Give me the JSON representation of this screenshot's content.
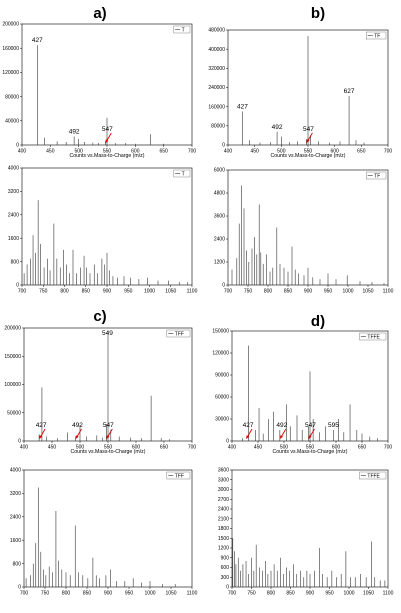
{
  "chart_data": [
    {
      "id": "a-top",
      "type": "bar",
      "panel_letter": "a)",
      "legend": "T",
      "xlabel": "Counts vs.Mass-to-Charge (m/z)",
      "xlim": [
        400,
        700
      ],
      "ylim": [
        0,
        200000
      ],
      "xticks": [
        400,
        450,
        500,
        550,
        600,
        650,
        700
      ],
      "yticks": [
        0,
        40000,
        80000,
        120000,
        160000,
        200000
      ],
      "peaks": [
        [
          427,
          165000
        ],
        [
          440,
          12000
        ],
        [
          462,
          6000
        ],
        [
          478,
          5000
        ],
        [
          492,
          14000
        ],
        [
          500,
          10000
        ],
        [
          510,
          5000
        ],
        [
          525,
          4000
        ],
        [
          535,
          3500
        ],
        [
          547,
          6000
        ],
        [
          550,
          45000
        ],
        [
          565,
          3000
        ],
        [
          583,
          3000
        ],
        [
          600,
          2000
        ],
        [
          627,
          18000
        ],
        [
          650,
          2000
        ]
      ],
      "labels": [
        {
          "text": "427",
          "x": 427,
          "y": 165000
        },
        {
          "text": "492",
          "x": 492,
          "y": 14000
        },
        {
          "text": "547",
          "x": 547,
          "y": 6000
        }
      ],
      "arrows": [
        547
      ]
    },
    {
      "id": "b-top",
      "type": "bar",
      "panel_letter": "b)",
      "legend": "TF",
      "xlabel": "Counts vs.Mass-to-Charge (m/z)",
      "xlim": [
        400,
        700
      ],
      "ylim": [
        0,
        480000
      ],
      "xticks": [
        400,
        450,
        500,
        550,
        600,
        650,
        700
      ],
      "yticks": [
        0,
        80000,
        160000,
        240000,
        320000,
        400000,
        480000
      ],
      "peaks": [
        [
          427,
          140000
        ],
        [
          440,
          20000
        ],
        [
          460,
          10000
        ],
        [
          480,
          12000
        ],
        [
          492,
          55000
        ],
        [
          500,
          35000
        ],
        [
          515,
          12000
        ],
        [
          530,
          15000
        ],
        [
          547,
          25000
        ],
        [
          550,
          455000
        ],
        [
          555,
          40000
        ],
        [
          570,
          15000
        ],
        [
          590,
          10000
        ],
        [
          610,
          15000
        ],
        [
          627,
          205000
        ],
        [
          640,
          20000
        ],
        [
          655,
          10000
        ]
      ],
      "labels": [
        {
          "text": "427",
          "x": 427,
          "y": 140000
        },
        {
          "text": "492",
          "x": 492,
          "y": 55000
        },
        {
          "text": "547",
          "x": 547,
          "y": 25000
        },
        {
          "text": "627",
          "x": 627,
          "y": 205000
        }
      ],
      "arrows": [
        547
      ]
    },
    {
      "id": "a-bottom",
      "type": "bar",
      "legend": "T",
      "xlim": [
        700,
        1100
      ],
      "ylim": [
        0,
        4000
      ],
      "xticks": [
        700,
        750,
        800,
        850,
        900,
        950,
        1000,
        1050,
        1100
      ],
      "yticks": [
        0,
        800,
        1600,
        2400,
        3200,
        4000
      ],
      "peaks": [
        [
          705,
          400
        ],
        [
          712,
          700
        ],
        [
          720,
          900
        ],
        [
          726,
          1700
        ],
        [
          732,
          1100
        ],
        [
          738,
          2900
        ],
        [
          744,
          1400
        ],
        [
          752,
          600
        ],
        [
          760,
          900
        ],
        [
          766,
          500
        ],
        [
          775,
          2100
        ],
        [
          782,
          900
        ],
        [
          790,
          600
        ],
        [
          798,
          1200
        ],
        [
          805,
          700
        ],
        [
          812,
          400
        ],
        [
          820,
          1200
        ],
        [
          828,
          400
        ],
        [
          838,
          600
        ],
        [
          846,
          1000
        ],
        [
          852,
          600
        ],
        [
          860,
          400
        ],
        [
          870,
          700
        ],
        [
          878,
          400
        ],
        [
          888,
          900
        ],
        [
          894,
          700
        ],
        [
          900,
          1100
        ],
        [
          906,
          500
        ],
        [
          914,
          300
        ],
        [
          925,
          250
        ],
        [
          940,
          300
        ],
        [
          955,
          250
        ],
        [
          975,
          200
        ],
        [
          995,
          250
        ],
        [
          1020,
          150
        ],
        [
          1045,
          150
        ],
        [
          1070,
          100
        ],
        [
          1090,
          100
        ]
      ],
      "labels": [],
      "arrows": []
    },
    {
      "id": "b-bottom",
      "type": "bar",
      "legend": "TF",
      "xlim": [
        700,
        1100
      ],
      "ylim": [
        0,
        6000
      ],
      "xticks": [
        700,
        750,
        800,
        850,
        900,
        950,
        1000,
        1050,
        1100
      ],
      "yticks": [
        0,
        1200,
        2400,
        3600,
        4800,
        6000
      ],
      "peaks": [
        [
          710,
          800
        ],
        [
          722,
          1400
        ],
        [
          728,
          3200
        ],
        [
          734,
          5200
        ],
        [
          740,
          4000
        ],
        [
          746,
          1800
        ],
        [
          752,
          1200
        ],
        [
          760,
          1900
        ],
        [
          766,
          2500
        ],
        [
          772,
          1600
        ],
        [
          778,
          4200
        ],
        [
          782,
          1700
        ],
        [
          788,
          1100
        ],
        [
          796,
          1600
        ],
        [
          805,
          700
        ],
        [
          812,
          900
        ],
        [
          822,
          3000
        ],
        [
          830,
          1100
        ],
        [
          840,
          900
        ],
        [
          850,
          700
        ],
        [
          860,
          2000
        ],
        [
          868,
          800
        ],
        [
          876,
          600
        ],
        [
          890,
          500
        ],
        [
          900,
          900
        ],
        [
          912,
          400
        ],
        [
          930,
          300
        ],
        [
          950,
          600
        ],
        [
          970,
          300
        ],
        [
          998,
          500
        ],
        [
          1030,
          200
        ],
        [
          1060,
          150
        ],
        [
          1090,
          100
        ]
      ],
      "labels": [],
      "arrows": []
    },
    {
      "id": "c-top",
      "type": "bar",
      "panel_letter": "c)",
      "legend": "TFF",
      "xlabel": "Counts vs.Mass-to-Charge (m/z)",
      "xlim": [
        400,
        700
      ],
      "ylim": [
        0,
        200000
      ],
      "xticks": [
        400,
        450,
        500,
        550,
        600,
        650,
        700
      ],
      "yticks": [
        0,
        50000,
        100000,
        150000,
        200000
      ],
      "peaks": [
        [
          427,
          12000
        ],
        [
          432,
          95000
        ],
        [
          440,
          8000
        ],
        [
          460,
          5000
        ],
        [
          478,
          15000
        ],
        [
          492,
          8000
        ],
        [
          500,
          28000
        ],
        [
          512,
          8000
        ],
        [
          530,
          10000
        ],
        [
          540,
          6000
        ],
        [
          547,
          30000
        ],
        [
          550,
          195000
        ],
        [
          555,
          20000
        ],
        [
          570,
          8000
        ],
        [
          590,
          6000
        ],
        [
          610,
          5000
        ],
        [
          627,
          80000
        ],
        [
          645,
          5000
        ],
        [
          660,
          3000
        ]
      ],
      "labels": [
        {
          "text": "549",
          "x": 549,
          "y": 195000
        },
        {
          "text": "427",
          "x": 427,
          "y": 12000
        },
        {
          "text": "492",
          "x": 492,
          "y": 8000
        },
        {
          "text": "547",
          "x": 547,
          "y": 30000
        }
      ],
      "arrows": [
        427,
        492,
        547
      ]
    },
    {
      "id": "d-top",
      "type": "bar",
      "panel_letter": "d)",
      "legend": "TFFE",
      "xlabel": "Counts vs.Mass-to-Charge (m/z)",
      "xlim": [
        400,
        700
      ],
      "ylim": [
        0,
        150000
      ],
      "xticks": [
        400,
        450,
        500,
        550,
        600,
        650,
        700
      ],
      "yticks": [
        0,
        30000,
        60000,
        90000,
        120000,
        150000
      ],
      "peaks": [
        [
          420,
          4000
        ],
        [
          432,
          130000
        ],
        [
          445,
          15000
        ],
        [
          452,
          45000
        ],
        [
          460,
          10000
        ],
        [
          470,
          30000
        ],
        [
          480,
          40000
        ],
        [
          492,
          15000
        ],
        [
          505,
          50000
        ],
        [
          512,
          20000
        ],
        [
          525,
          35000
        ],
        [
          535,
          15000
        ],
        [
          547,
          20000
        ],
        [
          550,
          95000
        ],
        [
          556,
          30000
        ],
        [
          568,
          12000
        ],
        [
          580,
          20000
        ],
        [
          595,
          15000
        ],
        [
          605,
          30000
        ],
        [
          615,
          12000
        ],
        [
          627,
          50000
        ],
        [
          640,
          15000
        ],
        [
          650,
          10000
        ],
        [
          665,
          6000
        ],
        [
          680,
          4000
        ]
      ],
      "labels": [
        {
          "text": "427",
          "x": 427,
          "y": 4000
        },
        {
          "text": "492",
          "x": 492,
          "y": 15000
        },
        {
          "text": "547",
          "x": 547,
          "y": 20000
        },
        {
          "text": "595",
          "x": 595,
          "y": 15000
        }
      ],
      "arrows": [
        427,
        492,
        547
      ]
    },
    {
      "id": "c-bottom",
      "type": "bar",
      "legend": "TFF",
      "xlim": [
        700,
        1100
      ],
      "ylim": [
        0,
        4000
      ],
      "xticks": [
        700,
        750,
        800,
        850,
        900,
        950,
        1000,
        1050,
        1100
      ],
      "yticks": [
        0,
        800,
        1600,
        2400,
        3200,
        4000
      ],
      "peaks": [
        [
          705,
          300
        ],
        [
          715,
          400
        ],
        [
          722,
          800
        ],
        [
          728,
          1500
        ],
        [
          734,
          3400
        ],
        [
          740,
          1200
        ],
        [
          746,
          600
        ],
        [
          752,
          400
        ],
        [
          760,
          700
        ],
        [
          768,
          500
        ],
        [
          776,
          2600
        ],
        [
          782,
          900
        ],
        [
          790,
          600
        ],
        [
          800,
          500
        ],
        [
          810,
          400
        ],
        [
          822,
          2100
        ],
        [
          830,
          500
        ],
        [
          840,
          400
        ],
        [
          852,
          300
        ],
        [
          864,
          1000
        ],
        [
          872,
          400
        ],
        [
          880,
          300
        ],
        [
          895,
          400
        ],
        [
          906,
          600
        ],
        [
          920,
          200
        ],
        [
          940,
          200
        ],
        [
          960,
          300
        ],
        [
          980,
          150
        ],
        [
          1000,
          200
        ],
        [
          1030,
          100
        ],
        [
          1060,
          100
        ]
      ],
      "labels": [],
      "arrows": []
    },
    {
      "id": "d-bottom",
      "type": "bar",
      "legend": "TFFE",
      "xlim": [
        700,
        1100
      ],
      "ylim": [
        0,
        3600
      ],
      "xticks": [
        700,
        750,
        800,
        850,
        900,
        950,
        1000,
        1050,
        1100
      ],
      "yticks": [
        0,
        300,
        600,
        900,
        1200,
        1500,
        1800,
        2100,
        2400,
        2700,
        3000,
        3300,
        3600
      ],
      "peaks": [
        [
          702,
          1500
        ],
        [
          706,
          1100
        ],
        [
          710,
          700
        ],
        [
          716,
          900
        ],
        [
          722,
          500
        ],
        [
          728,
          700
        ],
        [
          736,
          800
        ],
        [
          742,
          400
        ],
        [
          750,
          900
        ],
        [
          756,
          500
        ],
        [
          762,
          1300
        ],
        [
          770,
          600
        ],
        [
          778,
          500
        ],
        [
          786,
          800
        ],
        [
          792,
          400
        ],
        [
          800,
          500
        ],
        [
          808,
          700
        ],
        [
          816,
          500
        ],
        [
          824,
          900
        ],
        [
          832,
          400
        ],
        [
          840,
          600
        ],
        [
          848,
          500
        ],
        [
          858,
          700
        ],
        [
          866,
          400
        ],
        [
          876,
          500
        ],
        [
          884,
          300
        ],
        [
          892,
          500
        ],
        [
          900,
          400
        ],
        [
          912,
          500
        ],
        [
          924,
          1200
        ],
        [
          932,
          400
        ],
        [
          944,
          300
        ],
        [
          956,
          500
        ],
        [
          968,
          300
        ],
        [
          980,
          400
        ],
        [
          992,
          1100
        ],
        [
          1004,
          300
        ],
        [
          1016,
          300
        ],
        [
          1030,
          400
        ],
        [
          1044,
          300
        ],
        [
          1058,
          1400
        ],
        [
          1066,
          300
        ],
        [
          1080,
          200
        ],
        [
          1092,
          200
        ]
      ],
      "labels": [],
      "arrows": []
    }
  ]
}
